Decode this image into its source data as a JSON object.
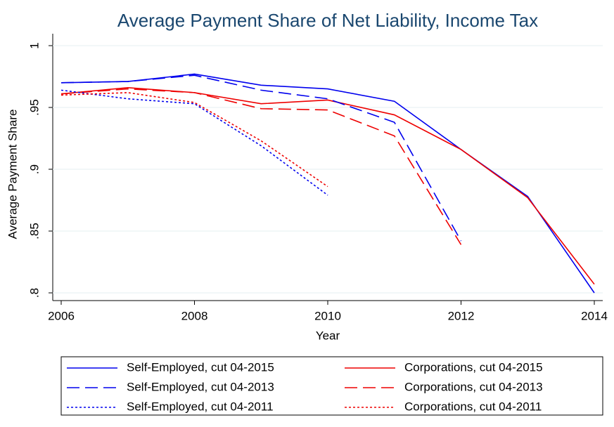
{
  "chart_data": {
    "type": "line",
    "title": "Average Payment Share of Net Liability, Income Tax",
    "x_label": "Year",
    "y_label": "Average Payment Share",
    "x": [
      2006,
      2007,
      2008,
      2009,
      2010,
      2011,
      2012,
      2013,
      2014
    ],
    "xlim": [
      2006,
      2014
    ],
    "xticks": [
      2006,
      2008,
      2010,
      2012,
      2014
    ],
    "ylim": [
      0.8,
      1
    ],
    "yticks": [
      {
        "value": 0.8,
        "label": ".8"
      },
      {
        "value": 0.85,
        "label": ".85"
      },
      {
        "value": 0.9,
        "label": ".9"
      },
      {
        "value": 0.95,
        "label": ".95"
      },
      1
    ],
    "grid": true,
    "legend": "bottom",
    "series": [
      {
        "name": "Self-Employed, cut 04-2015",
        "color": "#0000ee",
        "line_style": "solid",
        "values": [
          0.97,
          0.971,
          0.977,
          0.968,
          0.965,
          0.955,
          0.916,
          0.878,
          0.8
        ]
      },
      {
        "name": "Corporations, cut 04-2015",
        "color": "#ee0000",
        "line_style": "solid",
        "values": [
          0.961,
          0.966,
          0.962,
          0.953,
          0.956,
          0.944,
          0.916,
          0.877,
          0.807
        ]
      },
      {
        "name": "Self-Employed, cut 04-2013",
        "color": "#0000ee",
        "line_style": "dash",
        "values": [
          0.97,
          0.971,
          0.976,
          0.964,
          0.957,
          0.938,
          0.842,
          null,
          null
        ]
      },
      {
        "name": "Corporations, cut 04-2013",
        "color": "#ee0000",
        "line_style": "dash",
        "values": [
          0.961,
          0.965,
          0.962,
          0.949,
          0.948,
          0.927,
          0.839,
          null,
          null
        ]
      },
      {
        "name": "Self-Employed, cut 04-2011",
        "color": "#0000ee",
        "line_style": "dot",
        "values": [
          0.964,
          0.957,
          0.953,
          0.919,
          0.879,
          null,
          null,
          null,
          null
        ]
      },
      {
        "name": "Corporations, cut 04-2011",
        "color": "#ee0000",
        "line_style": "dot",
        "values": [
          0.96,
          0.962,
          0.954,
          0.923,
          0.886,
          null,
          null,
          null,
          null
        ]
      }
    ]
  }
}
